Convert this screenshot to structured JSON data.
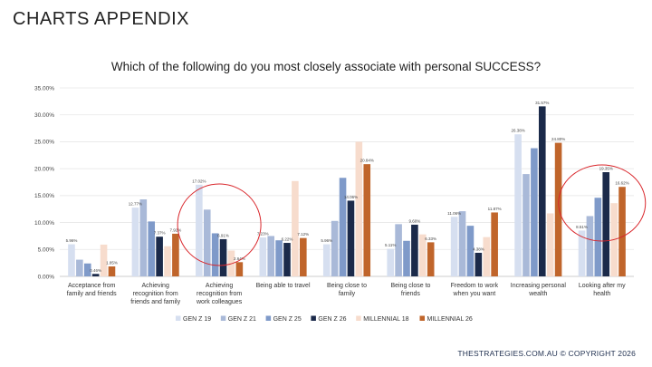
{
  "header": {
    "title": "CHARTS APPENDIX"
  },
  "footer": {
    "copyright": "THESTRATEGIES.COM.AU © COPYRIGHT 2026"
  },
  "colors": {
    "gen_z_19": "#d6dff0",
    "gen_z_21": "#a9b9d8",
    "gen_z_25": "#7f9ac9",
    "gen_z_26": "#1b2a4a",
    "millennial_18": "#f7dccd",
    "millennial_26": "#c0652b",
    "circle": "#d9262b",
    "grid": "#e6e6e6"
  },
  "chart_data": {
    "type": "bar",
    "title": "Which of the following do you most closely associate with personal SUCCESS?",
    "xlabel": "",
    "ylabel": "",
    "ylim": [
      0,
      35
    ],
    "y_ticks": [
      "0.00%",
      "5.00%",
      "10.00%",
      "15.00%",
      "20.00%",
      "25.00%",
      "30.00%",
      "35.00%"
    ],
    "grid": true,
    "legend_position": "bottom",
    "categories": [
      [
        "Acceptance from",
        "family and friends"
      ],
      [
        "Achieving",
        "recognition from",
        "friends and family"
      ],
      [
        "Achieving",
        "recognition from",
        "work colleagues"
      ],
      [
        "Being able to travel"
      ],
      [
        "Being close to",
        "family"
      ],
      [
        "Being close to",
        "friends"
      ],
      [
        "Freedom to work",
        "when you want"
      ],
      [
        "Increasing personal",
        "wealth"
      ],
      [
        "Looking after my",
        "health"
      ]
    ],
    "series": [
      {
        "name": "GEN Z 19",
        "values": [
          5.96,
          12.77,
          17.02,
          7.23,
          5.96,
          5.11,
          11.06,
          26.38,
          8.51
        ],
        "labels": [
          "5.96%",
          "12.77%",
          "17.02%",
          "7.23%",
          "5.96%",
          "5.11%",
          "11.06%",
          "26.38%",
          "8.51%"
        ]
      },
      {
        "name": "GEN Z 21",
        "values": [
          3.1,
          14.3,
          12.4,
          7.5,
          10.3,
          9.7,
          12.1,
          19.0,
          11.2
        ],
        "labels": [
          "",
          "",
          "",
          "",
          "",
          "",
          "",
          "",
          ""
        ]
      },
      {
        "name": "GEN Z 25",
        "values": [
          2.4,
          10.2,
          8.0,
          6.7,
          18.3,
          6.6,
          9.4,
          23.8,
          14.6
        ],
        "labels": [
          "",
          "",
          "",
          "",
          "",
          "",
          "",
          "",
          ""
        ]
      },
      {
        "name": "GEN Z 26",
        "values": [
          0.46,
          7.37,
          6.91,
          6.22,
          14.06,
          9.6,
          4.38,
          31.57,
          19.35
        ],
        "labels": [
          "0.46%",
          "7.37%",
          "6.91%",
          "6.22%",
          "14.06%",
          "9.60%",
          "4.38%",
          "31.57%",
          "19.35%"
        ]
      },
      {
        "name": "MILLENNIAL 18",
        "values": [
          5.9,
          5.6,
          4.8,
          17.7,
          25.0,
          7.8,
          7.3,
          11.7,
          13.6
        ],
        "labels": [
          "",
          "",
          "",
          "",
          "",
          "",
          "",
          "",
          ""
        ]
      },
      {
        "name": "MILLENNIAL 26",
        "values": [
          1.85,
          7.92,
          2.64,
          7.12,
          20.84,
          6.33,
          11.87,
          24.8,
          16.62
        ],
        "labels": [
          "1.85%",
          "7.92%",
          "2.64%",
          "7.12%",
          "20.84%",
          "6.33%",
          "11.87%",
          "24.80%",
          "16.62%"
        ]
      }
    ],
    "annotations": [
      {
        "type": "circle",
        "category_index": 2
      },
      {
        "type": "circle",
        "category_index": 8
      }
    ]
  }
}
